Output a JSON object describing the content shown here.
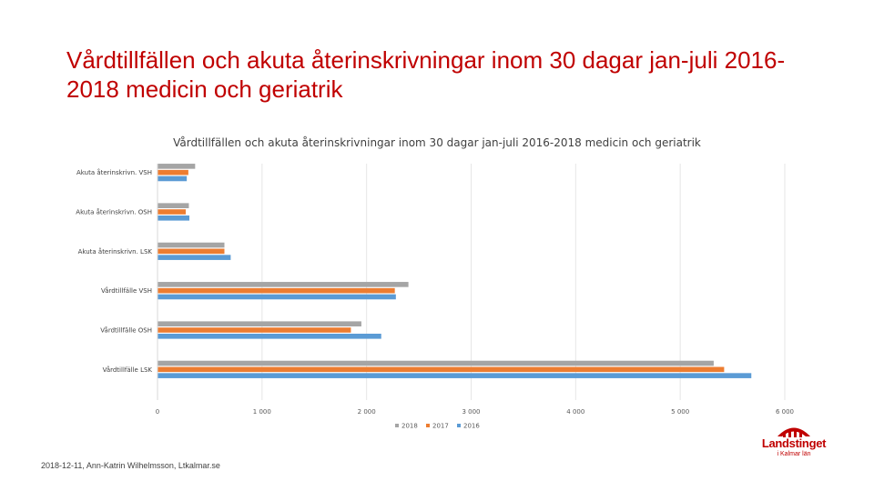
{
  "slide": {
    "title": "Vårdtillfällen och akuta återinskrivningar inom 30 dagar jan-juli 2016-2018 medicin och geriatrik",
    "footer": "2018-12-11, Ann-Katrin Wilhelmsson, Ltkalmar.se"
  },
  "logo": {
    "name": "Landstinget",
    "sub": "i Kalmar län",
    "color": "#c00000"
  },
  "chart_data": {
    "type": "bar",
    "orientation": "horizontal",
    "title": "Vårdtillfällen och akuta återinskrivningar inom 30 dagar jan-juli 2016-2018 medicin och geriatrik",
    "categories": [
      "Akuta återinskrivn. VSH",
      "Akuta återinskrivn. OSH",
      "Akuta återinskrivn. LSK",
      "Vårdtillfälle VSH",
      "Vårdtillfälle OSH",
      "Vårdtillfälle LSK"
    ],
    "series": [
      {
        "name": "2018",
        "color": "#a5a5a5",
        "values": [
          360,
          300,
          640,
          2400,
          1950,
          5320
        ]
      },
      {
        "name": "2017",
        "color": "#ed7d31",
        "values": [
          295,
          270,
          640,
          2270,
          1850,
          5420
        ]
      },
      {
        "name": "2016",
        "color": "#5b9bd5",
        "values": [
          280,
          305,
          700,
          2280,
          2140,
          5680
        ]
      }
    ],
    "xlim": [
      0,
      6000
    ],
    "xticks": [
      0,
      1000,
      2000,
      3000,
      4000,
      5000,
      6000
    ],
    "xtick_labels": [
      "0",
      "1 000",
      "2 000",
      "3 000",
      "4 000",
      "5 000",
      "6 000"
    ],
    "grid": true,
    "legend_position": "bottom"
  }
}
